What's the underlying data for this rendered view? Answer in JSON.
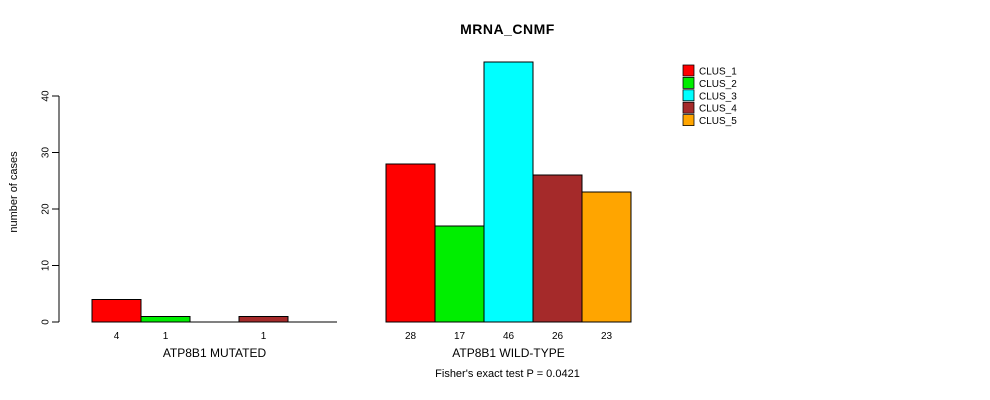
{
  "chart_data": {
    "type": "bar",
    "title": "MRNA_CNMF",
    "ylabel": "number of cases",
    "annotation": "Fisher's exact test P = 0.0421",
    "yticks": [
      0,
      10,
      20,
      30,
      40
    ],
    "ylim": [
      0,
      46
    ],
    "grid": false,
    "legend_position": "top-right",
    "categories": [
      "ATP8B1 MUTATED",
      "ATP8B1 WILD-TYPE"
    ],
    "series": [
      {
        "name": "CLUS_1",
        "color": "#ff0000",
        "values": [
          4,
          28
        ]
      },
      {
        "name": "CLUS_2",
        "color": "#00ee00",
        "values": [
          1,
          17
        ]
      },
      {
        "name": "CLUS_3",
        "color": "#00ffff",
        "values": [
          0,
          46
        ]
      },
      {
        "name": "CLUS_4",
        "color": "#a52a2a",
        "values": [
          1,
          26
        ]
      },
      {
        "name": "CLUS_5",
        "color": "#ffa500",
        "values": [
          0,
          23
        ]
      }
    ],
    "value_labels": {
      "ATP8B1 MUTATED": [
        4,
        1,
        0,
        1,
        0
      ],
      "ATP8B1 WILD-TYPE": [
        28,
        17,
        46,
        26,
        23
      ],
      "show_zero": false
    },
    "axis_color": "#000000",
    "bar_border_color": "#000000"
  }
}
